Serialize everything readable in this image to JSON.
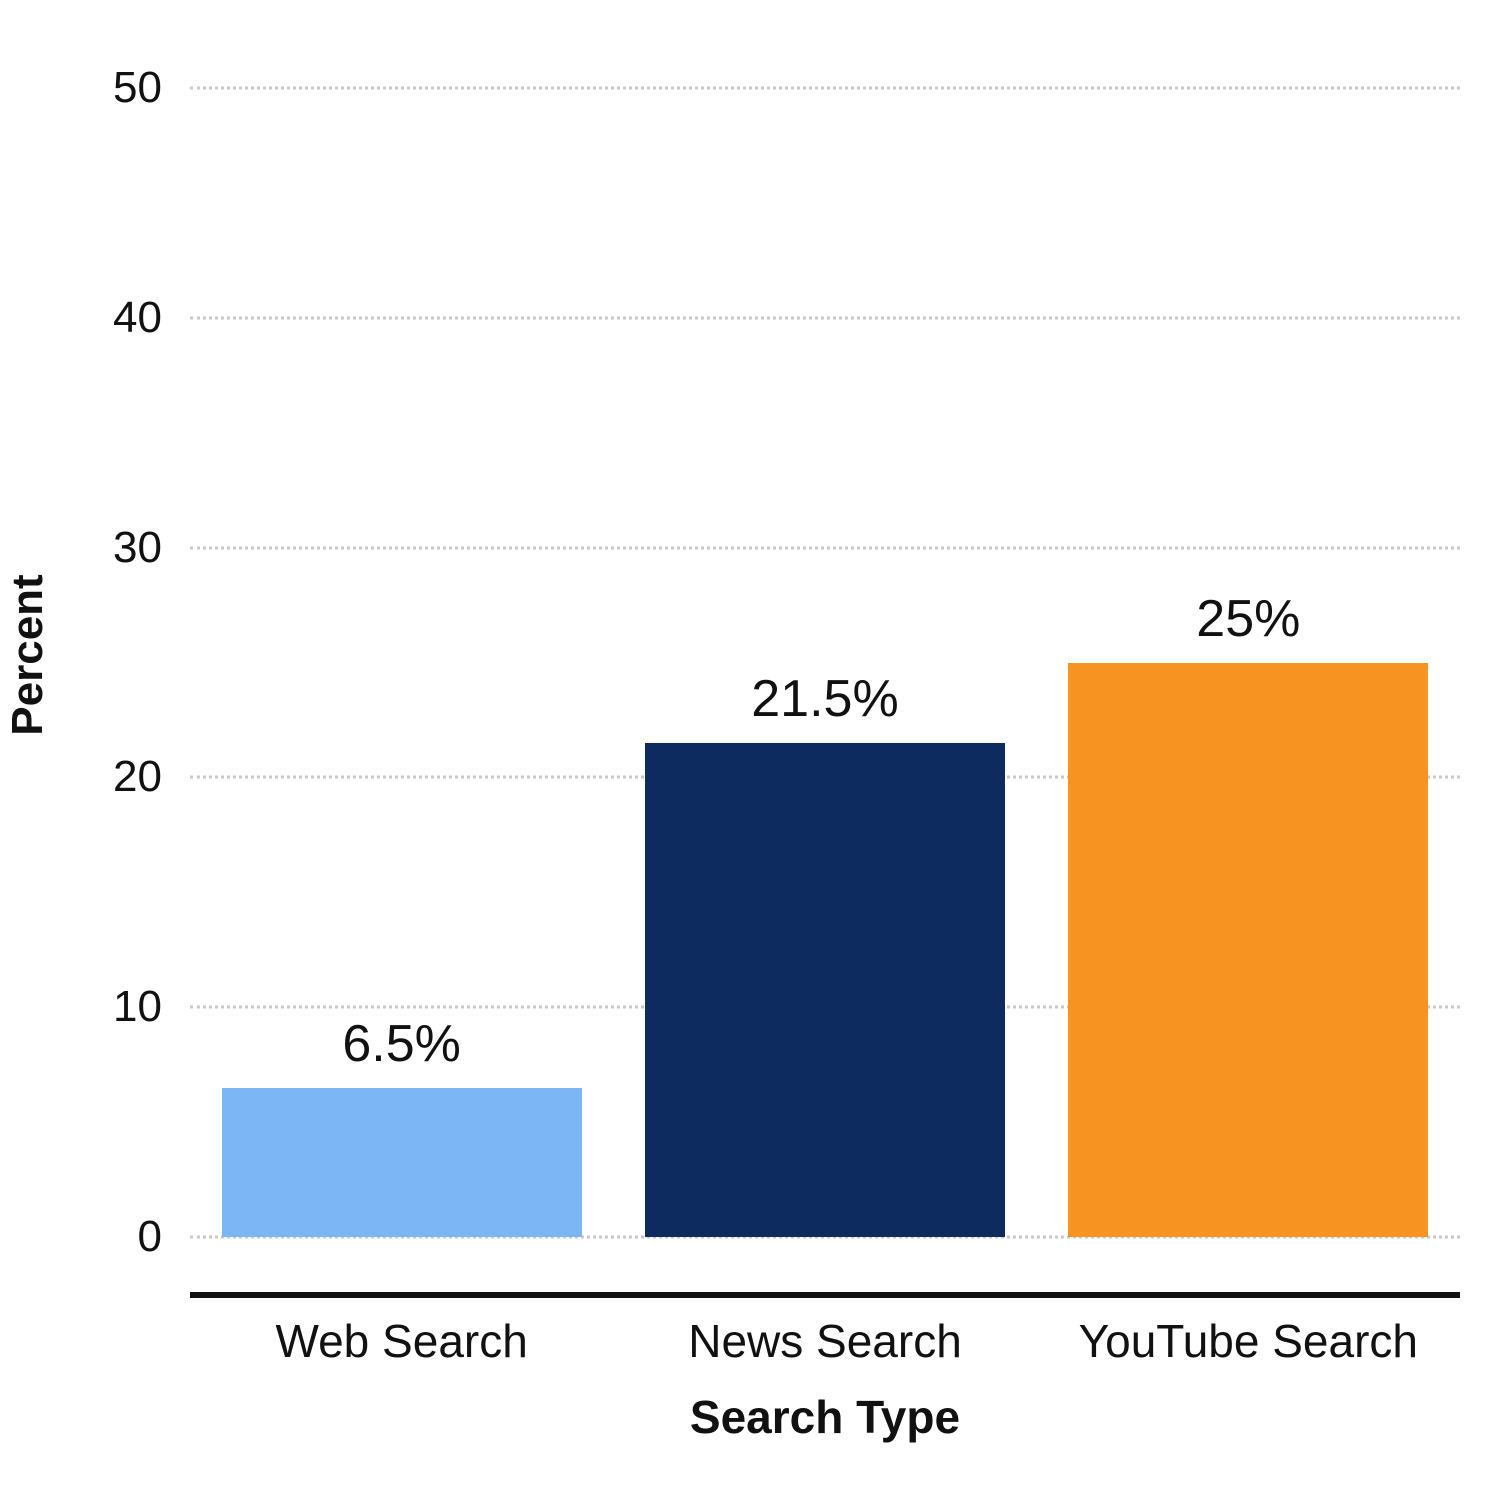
{
  "chart_data": {
    "type": "bar",
    "categories": [
      "Web Search",
      "News Search",
      "YouTube Search"
    ],
    "values": [
      6.5,
      21.5,
      25
    ],
    "value_labels": [
      "6.5%",
      "21.5%",
      "25%"
    ],
    "bar_colors": [
      "#7db6f5",
      "#0d2b5e",
      "#f79421"
    ],
    "title": "",
    "xlabel": "Search Type",
    "ylabel": "Percent",
    "ylim": [
      0,
      50
    ],
    "yticks": [
      0,
      10,
      20,
      30,
      40,
      50
    ],
    "grid": "horizontal-dotted",
    "legend": "none"
  }
}
